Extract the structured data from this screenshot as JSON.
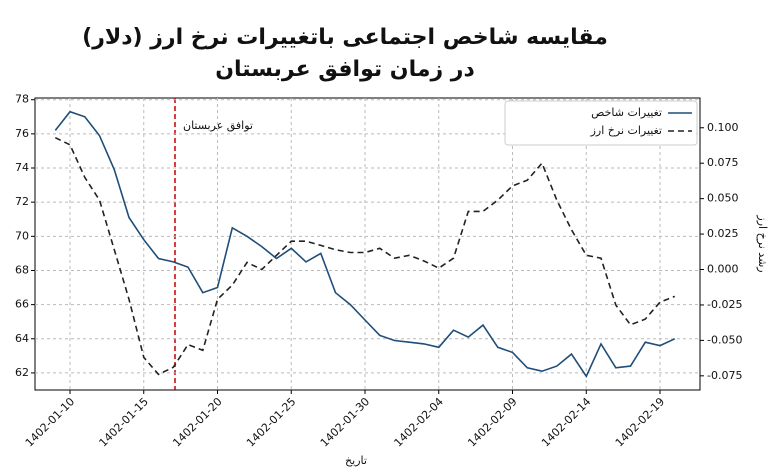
{
  "chart_data": {
    "type": "line",
    "title": "مقایسه شاخص اجتماعی باتغییرات نرخ ارز (دلار)",
    "subtitle": "در زمان توافق عربستان",
    "x_label": "تاریخ",
    "y2_label": "رشد نرخ ارز",
    "annotation": "توافق عربستان",
    "categories": [
      null,
      "1402-01-10",
      null,
      null,
      null,
      null,
      "1402-01-15",
      null,
      null,
      null,
      null,
      "1402-01-20",
      null,
      null,
      null,
      null,
      "1402-01-25",
      null,
      null,
      null,
      null,
      "1402-01-30",
      null,
      null,
      null,
      null,
      "1402-02-04",
      null,
      null,
      null,
      null,
      "1402-02-09",
      null,
      null,
      null,
      null,
      "1402-02-14",
      null,
      null,
      null,
      null,
      "1402-02-19",
      null
    ],
    "series": [
      {
        "name": "تغییرات شاخص",
        "color": "#1f4e79",
        "linestyle": "solid",
        "values": [
          76.2,
          77.3,
          77.0,
          75.9,
          73.9,
          71.1,
          69.8,
          68.7,
          68.5,
          68.2,
          66.7,
          67.0,
          70.5,
          70.0,
          69.4,
          68.7,
          69.3,
          68.5,
          69.0,
          66.7,
          66.0,
          65.1,
          64.2,
          63.9,
          63.8,
          63.7,
          63.5,
          64.5,
          64.1,
          64.8,
          63.5,
          63.2,
          62.3,
          62.1,
          62.4,
          63.1,
          61.8,
          63.7,
          62.3,
          62.4,
          63.8,
          63.6,
          64.0
        ]
      },
      {
        "name": "تغییرات نرخ ارز",
        "color": "#222222",
        "linestyle": "dashed",
        "axis": "y2",
        "values": [
          0.093,
          0.088,
          0.065,
          0.049,
          0.014,
          -0.021,
          -0.062,
          -0.074,
          -0.069,
          -0.053,
          -0.057,
          -0.021,
          -0.011,
          0.005,
          0.0,
          0.01,
          0.02,
          0.02,
          0.017,
          0.014,
          0.012,
          0.012,
          0.015,
          0.008,
          0.01,
          0.006,
          0.001,
          0.008,
          0.041,
          0.041,
          0.049,
          0.059,
          0.063,
          0.075,
          0.049,
          0.028,
          0.01,
          0.008,
          -0.025,
          -0.039,
          -0.035,
          -0.023,
          -0.019
        ]
      }
    ],
    "ylim": [
      61,
      78.1
    ],
    "yticks": [
      62,
      64,
      66,
      68,
      70,
      72,
      74,
      76,
      78
    ],
    "y2lim": [
      -0.085,
      0.121
    ],
    "y2ticks": [
      -0.075,
      {
        "value": -0.05,
        "label": "-0.050"
      },
      -0.025,
      {
        "value": 0,
        "label": "0.000"
      },
      0.025,
      {
        "value": 0.05,
        "label": "0.050"
      },
      0.075,
      {
        "value": 0.1,
        "label": "0.100"
      }
    ],
    "grid": true,
    "legend": "upper right"
  }
}
